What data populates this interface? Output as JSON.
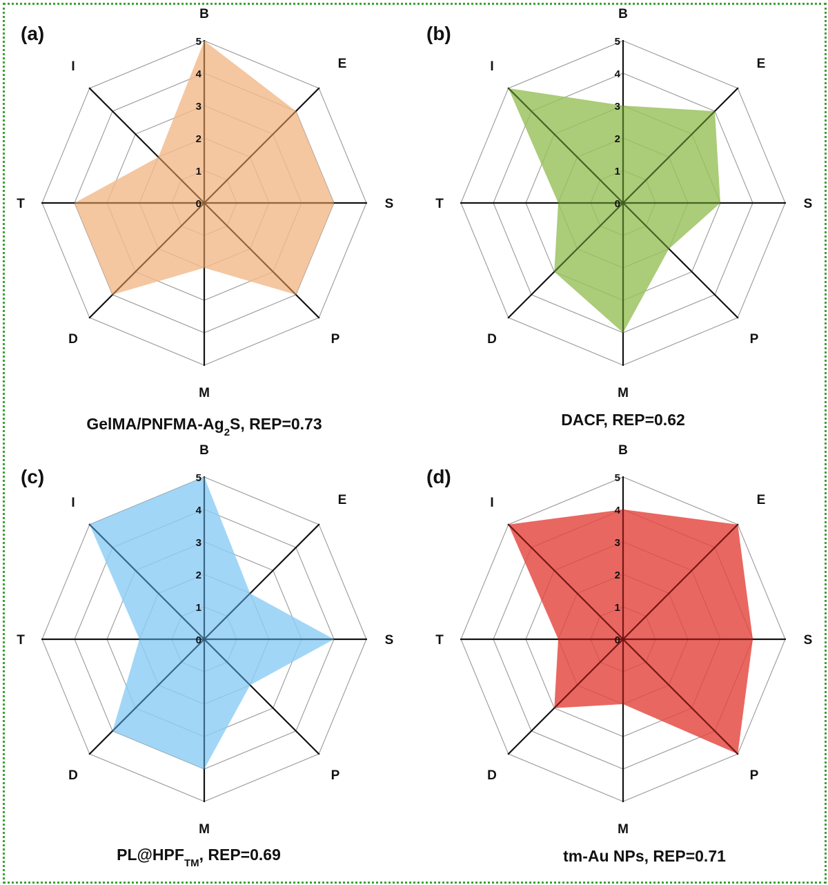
{
  "chart_data": [
    {
      "type": "radar",
      "panel_label": "(a)",
      "caption": {
        "main": "GelMA/PNFMA-Ag",
        "sub": "2",
        "tail": "S, REP=0.73"
      },
      "axes": [
        "B",
        "E",
        "S",
        "P",
        "M",
        "D",
        "T",
        "I"
      ],
      "series": [
        {
          "values": [
            5,
            4,
            4,
            4,
            2,
            4,
            4,
            2
          ]
        }
      ],
      "fill_color": "#f2bb8c",
      "spoke_color_inside": "#8a5c35",
      "ticks": [
        "0",
        "1",
        "2",
        "3",
        "4",
        "5"
      ],
      "range": [
        0,
        5
      ]
    },
    {
      "type": "radar",
      "panel_label": "(b)",
      "caption": {
        "main": "DACF, REP=0.62",
        "sub": "",
        "tail": ""
      },
      "axes": [
        "B",
        "E",
        "S",
        "P",
        "M",
        "D",
        "T",
        "I"
      ],
      "series": [
        {
          "values": [
            3,
            4,
            3,
            2,
            4,
            3,
            2,
            5
          ]
        }
      ],
      "fill_color": "#98c15a",
      "spoke_color_inside": "#3c5a1d",
      "ticks": [
        "0",
        "1",
        "2",
        "3",
        "4",
        "5"
      ],
      "range": [
        0,
        5
      ]
    },
    {
      "type": "radar",
      "panel_label": "(c)",
      "caption": {
        "main": "PL@HPF",
        "sub": "TM",
        "tail": ", REP=0.69"
      },
      "axes": [
        "B",
        "E",
        "S",
        "P",
        "M",
        "D",
        "T",
        "I"
      ],
      "series": [
        {
          "values": [
            5,
            2,
            4,
            2,
            4,
            4,
            2,
            5
          ]
        }
      ],
      "fill_color": "#8dcdf5",
      "spoke_color_inside": "#2f5a7a",
      "ticks": [
        "0",
        "1",
        "2",
        "3",
        "4",
        "5"
      ],
      "range": [
        0,
        5
      ]
    },
    {
      "type": "radar",
      "panel_label": "(d)",
      "caption": {
        "main": "tm-Au NPs, REP=0.71",
        "sub": "",
        "tail": ""
      },
      "axes": [
        "B",
        "E",
        "S",
        "P",
        "M",
        "D",
        "T",
        "I"
      ],
      "series": [
        {
          "values": [
            4,
            5,
            4,
            5,
            2,
            3,
            2,
            5
          ]
        }
      ],
      "fill_color": "#e4453e",
      "spoke_color_inside": "#6a1010",
      "ticks": [
        "0",
        "1",
        "2",
        "3",
        "4",
        "5"
      ],
      "range": [
        0,
        5
      ]
    }
  ],
  "colors": {
    "border": "#3aa035",
    "grid": "#999999",
    "axis": "#111111"
  }
}
